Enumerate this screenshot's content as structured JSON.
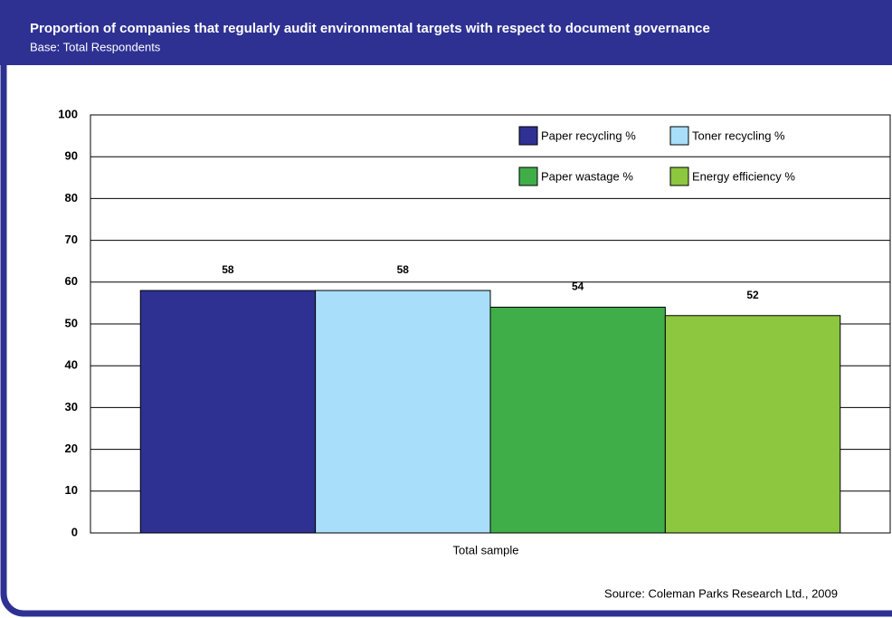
{
  "chart_data": {
    "type": "bar",
    "title": "Proportion of companies that regularly audit environmental targets with respect to document governance",
    "subtitle": "Base: Total Respondents",
    "source": "Source: Coleman Parks Research Ltd., 2009",
    "categories": [
      "Total sample"
    ],
    "series": [
      {
        "name": "Paper recycling %",
        "color": "#2e3192",
        "values": [
          58
        ]
      },
      {
        "name": "Toner recycling %",
        "color": "#a8defa",
        "values": [
          58
        ]
      },
      {
        "name": "Paper wastage %",
        "color": "#3fae49",
        "values": [
          54
        ]
      },
      {
        "name": "Energy efficiency %",
        "color": "#8dc63f",
        "values": [
          52
        ]
      }
    ],
    "ylim": [
      0,
      100
    ],
    "yticks": [
      0,
      10,
      20,
      30,
      40,
      50,
      60,
      70,
      80,
      90,
      100
    ],
    "grid": true,
    "legend": "top-right"
  }
}
